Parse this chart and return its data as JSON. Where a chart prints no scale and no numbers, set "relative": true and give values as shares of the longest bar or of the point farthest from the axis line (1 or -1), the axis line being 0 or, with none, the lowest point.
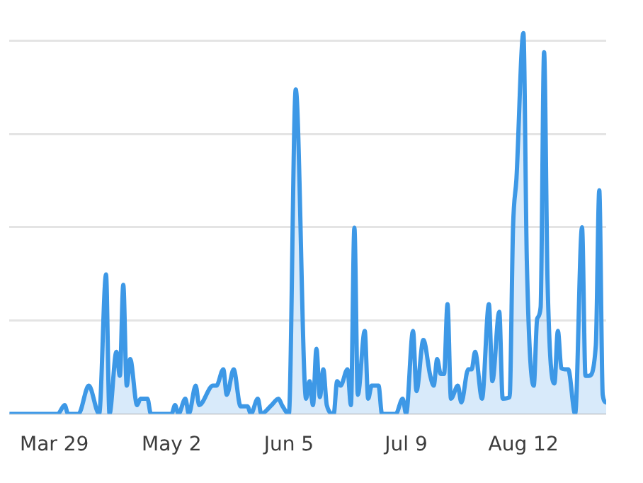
{
  "chart_data": {
    "type": "area",
    "relative": true,
    "color": "#3d98e6",
    "x": [
      "--03-16",
      "--03-30",
      "--04-01",
      "--04-02",
      "--04-05",
      "--04-08",
      "--04-11",
      "--04-13",
      "--04-14",
      "--04-16",
      "--04-17",
      "--04-18",
      "--04-19",
      "--04-20",
      "--04-22",
      "--04-23",
      "--04-25",
      "--04-26",
      "--05-02",
      "--05-03",
      "--05-04",
      "--05-06",
      "--05-07",
      "--05-09",
      "--05-10",
      "--05-14",
      "--05-15",
      "--05-17",
      "--05-18",
      "--05-20",
      "--05-22",
      "--05-24",
      "--05-25",
      "--05-27",
      "--05-28",
      "--05-31",
      "--06-02",
      "--06-03",
      "--06-05",
      "--06-07",
      "--06-10",
      "--06-11",
      "--06-12",
      "--06-13",
      "--06-14",
      "--06-15",
      "--06-16",
      "--06-18",
      "--06-19",
      "--06-20",
      "--06-22",
      "--06-23",
      "--06-24",
      "--06-25",
      "--06-27",
      "--06-28",
      "--06-29",
      "--07-01",
      "--07-02",
      "--07-06",
      "--07-08",
      "--07-09",
      "--07-11",
      "--07-12",
      "--07-14",
      "--07-16",
      "--07-17",
      "--07-18",
      "--07-19",
      "--07-20",
      "--07-21",
      "--07-22",
      "--07-24",
      "--07-25",
      "--07-27",
      "--07-28",
      "--07-29",
      "--07-31",
      "--08-02",
      "--08-03",
      "--08-05",
      "--08-06",
      "--08-08",
      "--08-09",
      "--08-10",
      "--08-12",
      "--08-13",
      "--08-15",
      "--08-16",
      "--08-17",
      "--08-18",
      "--08-19",
      "--08-21",
      "--08-22",
      "--08-23",
      "--08-24",
      "--08-25",
      "--08-27",
      "--08-29",
      "--08-30",
      "--08-31",
      "--09-02",
      "--09-03",
      "--09-04",
      "--09-05"
    ],
    "values": [
      0,
      0,
      0.023,
      0,
      0,
      0.074,
      0,
      0.366,
      0,
      0.163,
      0.1,
      0.339,
      0.074,
      0.144,
      0.023,
      0.04,
      0.04,
      0,
      0,
      0.023,
      0,
      0.04,
      0,
      0.074,
      0.023,
      0.074,
      0.074,
      0.117,
      0.05,
      0.117,
      0.02,
      0.02,
      0,
      0.04,
      0,
      0.023,
      0.04,
      0.023,
      0,
      0.852,
      0.04,
      0.086,
      0.023,
      0.171,
      0.044,
      0.117,
      0.023,
      0,
      0.086,
      0.074,
      0.117,
      0.023,
      0.489,
      0.05,
      0.218,
      0.04,
      0.074,
      0.074,
      0,
      0,
      0.04,
      0,
      0.218,
      0.06,
      0.194,
      0.1,
      0.074,
      0.144,
      0.105,
      0.105,
      0.288,
      0.04,
      0.074,
      0.03,
      0.117,
      0.117,
      0.163,
      0.04,
      0.288,
      0.086,
      0.268,
      0.04,
      0.044,
      0.49,
      0.62,
      1,
      0.4,
      0.074,
      0.25,
      0.28,
      0.95,
      0.35,
      0.08,
      0.218,
      0.12,
      0.117,
      0.117,
      0,
      0.49,
      0.1,
      0.1,
      0.18,
      0.587,
      0.05,
      0.03
    ],
    "xlim": [
      "--03-16",
      "--09-05"
    ],
    "xticks": [
      {
        "value": "--03-29",
        "label": "Mar 29"
      },
      {
        "value": "--05-02",
        "label": "May 2"
      },
      {
        "value": "--06-05",
        "label": "Jun 5"
      },
      {
        "value": "--07-09",
        "label": "Jul 9"
      },
      {
        "value": "--08-12",
        "label": "Aug 12"
      }
    ],
    "grid": "y",
    "tick_labels": "x"
  }
}
